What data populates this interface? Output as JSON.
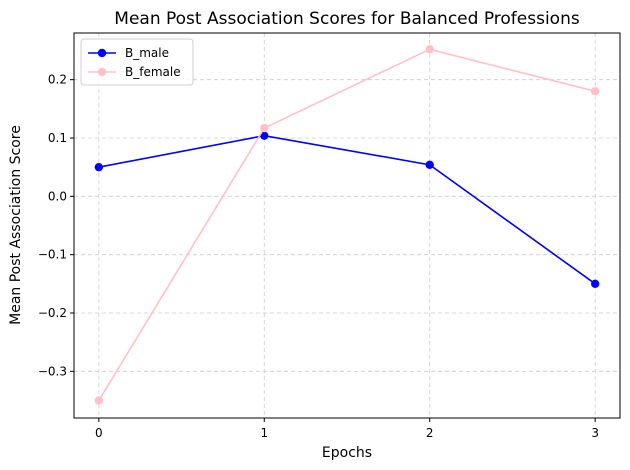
{
  "chart_data": {
    "type": "line",
    "title": "Mean Post Association Scores for Balanced Professions",
    "xlabel": "Epochs",
    "ylabel": "Mean Post Association Score",
    "x": [
      0,
      1,
      2,
      3
    ],
    "x_tick_labels": [
      "0",
      "1",
      "2",
      "3"
    ],
    "xlim": [
      -0.15,
      3.15
    ],
    "ylim": [
      -0.38,
      0.28
    ],
    "y_ticks": [
      -0.3,
      -0.2,
      -0.1,
      0.0,
      0.1,
      0.2
    ],
    "y_tick_labels": [
      "−0.3",
      "−0.2",
      "−0.1",
      "0.0",
      "0.1",
      "0.2"
    ],
    "grid": true,
    "legend_position": "top-left",
    "series": [
      {
        "name": "B_male",
        "values": [
          0.05,
          0.104,
          0.054,
          -0.15
        ],
        "color": "#0000ff",
        "marker": "circle"
      },
      {
        "name": "B_female",
        "values": [
          -0.35,
          0.117,
          0.252,
          0.18
        ],
        "color": "#ffc0cb",
        "marker": "circle"
      }
    ]
  }
}
